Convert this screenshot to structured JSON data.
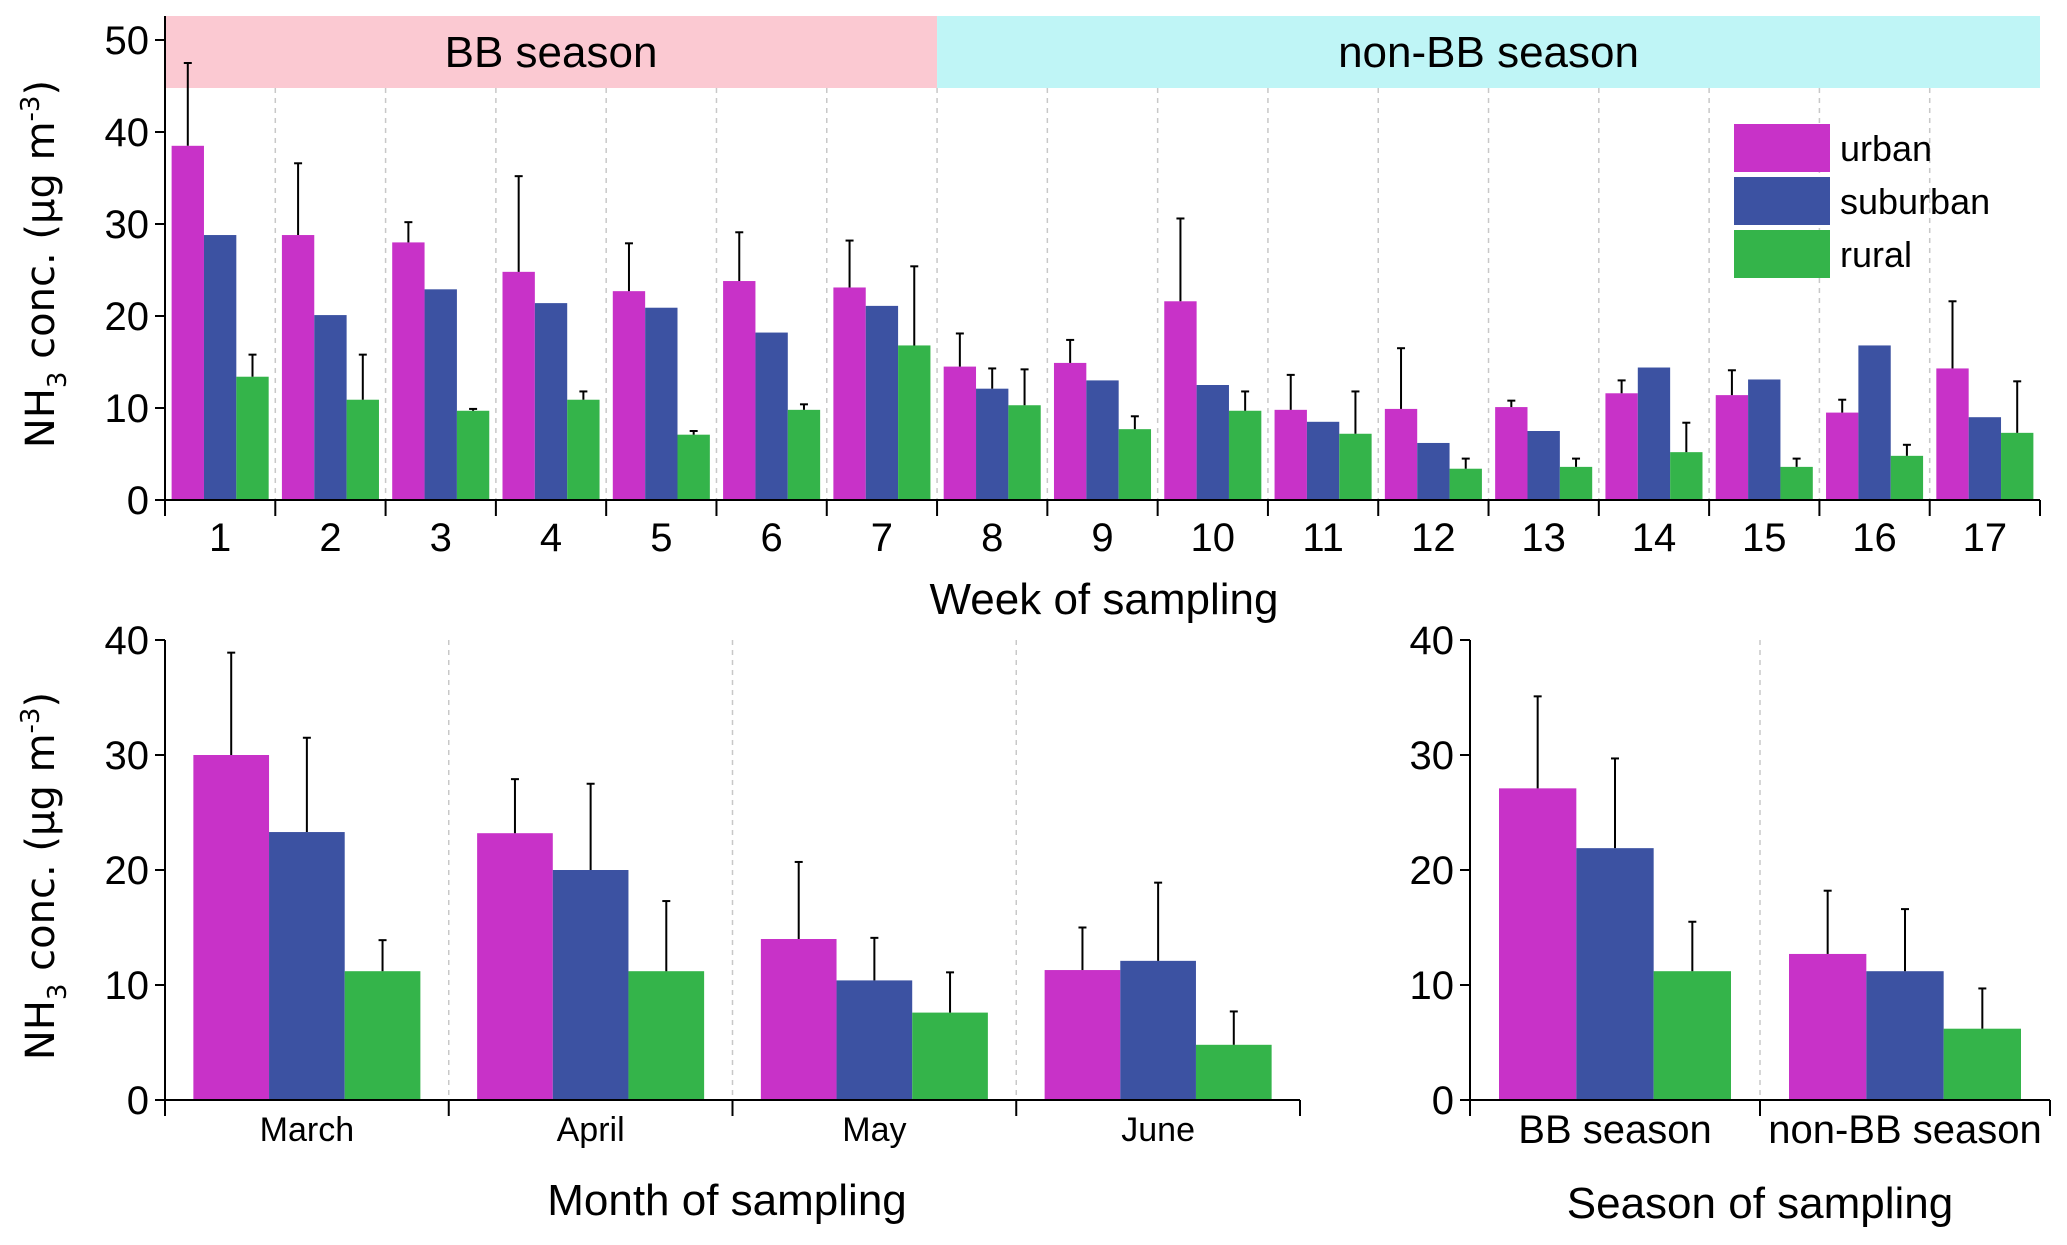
{
  "colors": {
    "urban": "#c832c8",
    "suburban": "#3c52a2",
    "rural": "#34b44a",
    "bb_band": "#fbc9d2",
    "nonbb_band": "#bff5f6",
    "axis": "#000000",
    "grid": "#c8c8c8"
  },
  "chart_data": [
    {
      "id": "weekly",
      "type": "bar",
      "title": "",
      "xlabel": "Week of sampling",
      "ylabel": "NH3 conc. (μg m-3)",
      "ylabel_parts": {
        "pre": "NH",
        "sub": "3",
        "mid": " conc. (μg m",
        "sup": "-3",
        "post": ")"
      },
      "ylim": [
        0,
        50
      ],
      "yticks": [
        "0",
        "10",
        "20",
        "30",
        "40",
        "50"
      ],
      "categories": [
        "1",
        "2",
        "3",
        "4",
        "5",
        "6",
        "7",
        "8",
        "9",
        "10",
        "11",
        "12",
        "13",
        "14",
        "15",
        "16",
        "17"
      ],
      "series": [
        {
          "name": "urban",
          "values": [
            38.5,
            28.8,
            28.0,
            24.8,
            22.7,
            23.8,
            23.1,
            14.5,
            14.9,
            21.6,
            9.8,
            9.9,
            10.1,
            11.6,
            11.4,
            9.5,
            14.3
          ],
          "errors": [
            9.0,
            7.8,
            2.2,
            10.4,
            5.2,
            5.3,
            5.1,
            3.6,
            2.5,
            9.0,
            3.8,
            6.6,
            0.7,
            1.4,
            2.7,
            1.4,
            7.3
          ]
        },
        {
          "name": "suburban",
          "values": [
            28.8,
            20.1,
            22.9,
            21.4,
            20.9,
            18.2,
            21.1,
            12.1,
            13.0,
            12.5,
            8.5,
            6.2,
            7.5,
            14.4,
            13.1,
            16.8,
            9.0
          ],
          "errors": [
            0,
            0,
            0,
            0,
            0,
            0,
            0,
            2.2,
            0,
            0,
            0,
            0,
            0,
            0,
            0,
            0,
            0
          ]
        },
        {
          "name": "rural",
          "values": [
            13.4,
            10.9,
            9.7,
            10.9,
            7.1,
            9.8,
            16.8,
            10.3,
            7.7,
            9.7,
            7.2,
            3.4,
            3.6,
            5.2,
            3.6,
            4.8,
            7.3
          ],
          "errors": [
            2.4,
            4.9,
            0.2,
            0.9,
            0.4,
            0.6,
            8.6,
            3.9,
            1.4,
            2.1,
            4.6,
            1.1,
            0.9,
            3.2,
            0.9,
            1.2,
            5.6
          ]
        }
      ],
      "season_bands": [
        {
          "label": "BB  season",
          "from_week": 1,
          "to_week": 7
        },
        {
          "label": "non-BB season",
          "from_week": 8,
          "to_week": 17
        }
      ],
      "legend": {
        "position": "top-right",
        "entries": [
          "urban",
          "suburban",
          "rural"
        ]
      },
      "grid": "vertical dashed separators between weeks"
    },
    {
      "id": "monthly",
      "type": "bar",
      "xlabel": "Month of sampling",
      "ylabel": "NH3 conc. (μg m-3)",
      "ylabel_parts": {
        "pre": "NH",
        "sub": "3",
        "mid": " conc. (μg m",
        "sup": "-3",
        "post": ")"
      },
      "ylim": [
        0,
        40
      ],
      "yticks": [
        "0",
        "10",
        "20",
        "30",
        "40"
      ],
      "categories": [
        "March",
        "April",
        "May",
        "June"
      ],
      "series": [
        {
          "name": "urban",
          "values": [
            30.0,
            23.2,
            14.0,
            11.3
          ],
          "errors": [
            8.9,
            4.7,
            6.7,
            3.7
          ]
        },
        {
          "name": "suburban",
          "values": [
            23.3,
            20.0,
            10.4,
            12.1
          ],
          "errors": [
            8.2,
            7.5,
            3.7,
            6.8
          ]
        },
        {
          "name": "rural",
          "values": [
            11.2,
            11.2,
            7.6,
            4.8
          ],
          "errors": [
            2.7,
            6.1,
            3.5,
            2.9
          ]
        }
      ]
    },
    {
      "id": "seasonal",
      "type": "bar",
      "xlabel": "Season of sampling",
      "ylim": [
        0,
        40
      ],
      "yticks": [
        "0",
        "10",
        "20",
        "30",
        "40"
      ],
      "categories": [
        "BB  season",
        "non-BB season"
      ],
      "series": [
        {
          "name": "urban",
          "values": [
            27.1,
            12.7
          ],
          "errors": [
            8.0,
            5.5
          ]
        },
        {
          "name": "suburban",
          "values": [
            21.9,
            11.2
          ],
          "errors": [
            7.8,
            5.4
          ]
        },
        {
          "name": "rural",
          "values": [
            11.2,
            6.2
          ],
          "errors": [
            4.3,
            3.5
          ]
        }
      ]
    }
  ]
}
